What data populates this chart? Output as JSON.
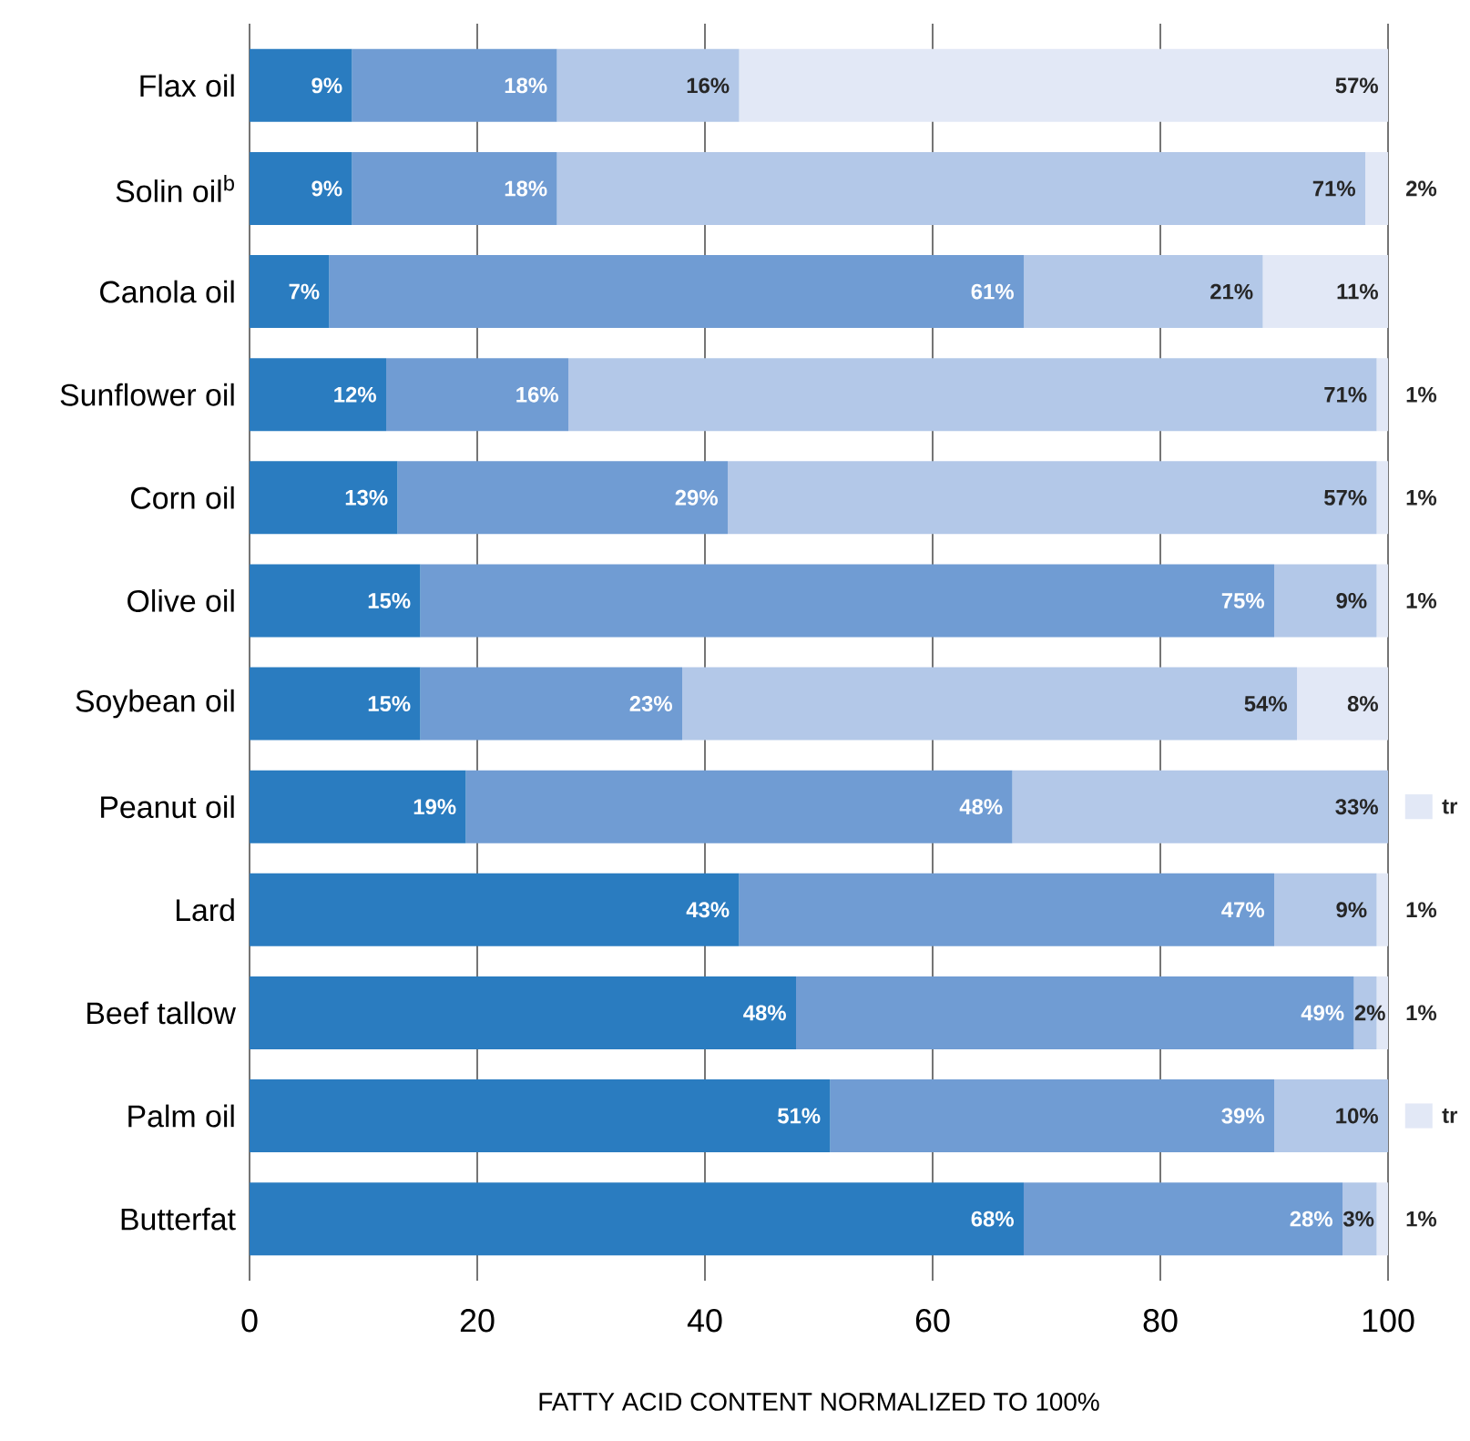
{
  "chart_data": {
    "type": "bar",
    "orientation": "horizontal",
    "stacked": true,
    "grid": "x",
    "categories": [
      "Flax oil",
      "Solin oil$^{b}$",
      "Canola oil",
      "Sunflower oil",
      "Corn oil",
      "Olive oil",
      "Soybean oil",
      "Peanut oil",
      "Lard",
      "Beef tallow",
      "Palm oil",
      "Butterfat"
    ],
    "series": [
      {
        "color": "#2a7cc0",
        "values": [
          9,
          9,
          7,
          12,
          13,
          15,
          15,
          19,
          43,
          48,
          51,
          68
        ],
        "value_labels": [
          "9%",
          "9%",
          "7%",
          "12%",
          "13%",
          "15%",
          "15%",
          "19%",
          "43%",
          "48%",
          "51%",
          "68%"
        ]
      },
      {
        "color": "#709cd3",
        "values": [
          18,
          18,
          61,
          16,
          29,
          75,
          23,
          48,
          47,
          49,
          39,
          28
        ],
        "value_labels": [
          "18%",
          "18%",
          "61%",
          "16%",
          "29%",
          "75%",
          "23%",
          "48%",
          "47%",
          "49%",
          "39%",
          "28%"
        ]
      },
      {
        "color": "#b3c8e8",
        "values": [
          16,
          71,
          21,
          71,
          57,
          9,
          54,
          33,
          9,
          2,
          10,
          3
        ],
        "value_labels": [
          "16%",
          "71%",
          "21%",
          "71%",
          "57%",
          "9%",
          "54%",
          "33%",
          "9%",
          "2%",
          "10%",
          "3%"
        ]
      },
      {
        "color": "#e2e8f6",
        "values": [
          57,
          2,
          11,
          1,
          1,
          1,
          8,
          0,
          1,
          1,
          0,
          1
        ],
        "value_labels": [
          "57%",
          "2%",
          "11%",
          "1%",
          "1%",
          "1%",
          "8%",
          "tr",
          "1%",
          "1%",
          "tr",
          "1%"
        ]
      }
    ],
    "xlim": [
      0,
      100
    ],
    "xticks": [
      0,
      20,
      40,
      60,
      80,
      100
    ],
    "xlabel": "FATTY ACID CONTENT NORMALIZED TO 100%"
  }
}
